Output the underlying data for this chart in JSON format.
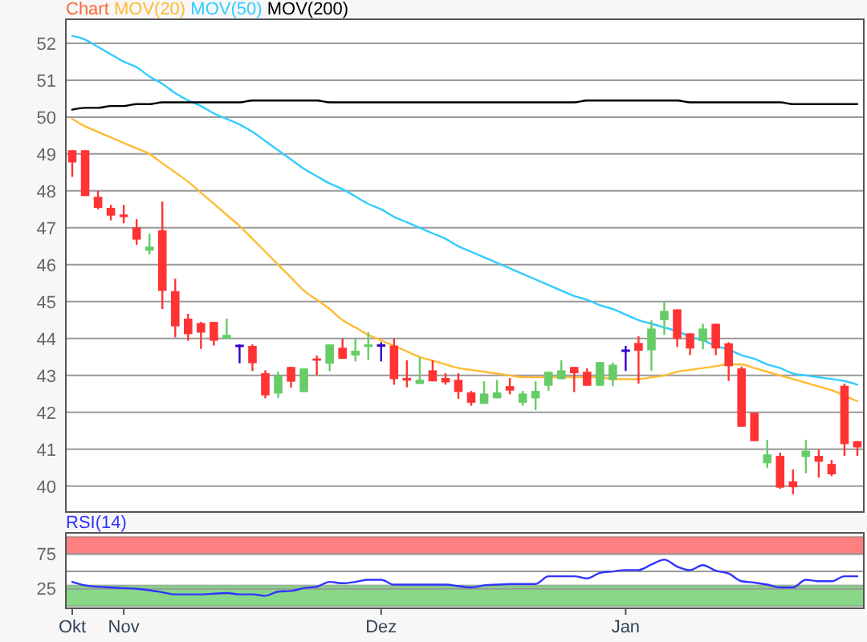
{
  "chart_data": [
    {
      "type": "candlestick",
      "title": "Chart",
      "legend": "top",
      "grid": "y",
      "tick_labels": "y",
      "categories": [
        null,
        null,
        null,
        null,
        null,
        null,
        null,
        null,
        null,
        null,
        null,
        null,
        null,
        null,
        null,
        null,
        null,
        null,
        null,
        null,
        null,
        null,
        null,
        null,
        null,
        null,
        null,
        null,
        null,
        null,
        null,
        null,
        null,
        null,
        null,
        null,
        null,
        null,
        null,
        null,
        null,
        null,
        null,
        null,
        null,
        null,
        null,
        null,
        null,
        null,
        null,
        null,
        null,
        null,
        null,
        null,
        null,
        null,
        null,
        null,
        null,
        null
      ],
      "ohlc": [
        [
          49.1,
          49.1,
          48.38,
          48.77
        ],
        [
          49.1,
          49.1,
          47.86,
          47.86
        ],
        [
          47.84,
          48.0,
          47.5,
          47.54
        ],
        [
          47.54,
          47.62,
          47.2,
          47.33
        ],
        [
          47.36,
          47.62,
          47.12,
          47.29
        ],
        [
          47.01,
          47.23,
          46.54,
          46.68
        ],
        [
          46.38,
          46.84,
          46.28,
          46.49
        ],
        [
          46.93,
          47.71,
          44.8,
          45.29
        ],
        [
          45.28,
          45.62,
          44.03,
          44.33
        ],
        [
          44.54,
          44.67,
          43.94,
          44.12
        ],
        [
          44.42,
          44.45,
          43.72,
          44.16
        ],
        [
          44.45,
          44.45,
          43.81,
          43.94
        ],
        [
          43.99,
          44.54,
          43.99,
          44.1
        ],
        [
          43.8,
          43.84,
          43.33,
          43.8
        ],
        [
          43.8,
          43.84,
          43.12,
          43.33
        ],
        [
          43.06,
          43.14,
          42.38,
          42.46
        ],
        [
          42.51,
          43.1,
          42.39,
          43.0
        ],
        [
          43.23,
          43.23,
          42.67,
          42.83
        ],
        [
          42.55,
          43.19,
          42.55,
          43.19
        ],
        [
          43.46,
          43.54,
          43.01,
          43.4
        ],
        [
          43.32,
          43.84,
          43.12,
          43.84
        ],
        [
          43.75,
          44.0,
          43.45,
          43.45
        ],
        [
          43.54,
          44.0,
          43.38,
          43.67
        ],
        [
          43.77,
          44.17,
          43.42,
          43.84
        ],
        [
          43.81,
          43.9,
          43.38,
          43.81
        ],
        [
          43.81,
          44.0,
          42.75,
          42.9
        ],
        [
          42.93,
          43.41,
          42.68,
          42.86
        ],
        [
          42.77,
          43.49,
          42.77,
          42.88
        ],
        [
          43.14,
          43.41,
          42.84,
          42.84
        ],
        [
          42.93,
          43.06,
          42.75,
          42.81
        ],
        [
          42.88,
          43.06,
          42.37,
          42.55
        ],
        [
          42.54,
          42.58,
          42.18,
          42.26
        ],
        [
          42.23,
          42.84,
          42.23,
          42.51
        ],
        [
          42.38,
          42.88,
          42.38,
          42.54
        ],
        [
          42.71,
          42.93,
          42.49,
          42.59
        ],
        [
          42.26,
          42.58,
          42.18,
          42.51
        ],
        [
          42.38,
          42.84,
          42.06,
          42.58
        ],
        [
          42.72,
          43.1,
          42.59,
          43.1
        ],
        [
          42.9,
          43.41,
          42.9,
          43.14
        ],
        [
          43.23,
          43.23,
          42.55,
          43.06
        ],
        [
          43.1,
          43.19,
          42.72,
          42.72
        ],
        [
          42.72,
          43.36,
          42.72,
          43.36
        ],
        [
          42.88,
          43.35,
          42.71,
          43.29
        ],
        [
          43.67,
          43.8,
          43.12,
          43.67
        ],
        [
          43.88,
          44.06,
          42.78,
          43.67
        ],
        [
          43.68,
          44.49,
          43.12,
          44.27
        ],
        [
          44.5,
          44.99,
          44.1,
          44.75
        ],
        [
          44.79,
          44.79,
          43.77,
          43.99
        ],
        [
          44.14,
          44.14,
          43.55,
          43.73
        ],
        [
          43.93,
          44.4,
          43.71,
          44.27
        ],
        [
          44.4,
          44.4,
          43.55,
          43.73
        ],
        [
          43.87,
          43.9,
          42.85,
          43.25
        ],
        [
          43.19,
          43.24,
          41.61,
          41.61
        ],
        [
          41.99,
          41.99,
          41.22,
          41.22
        ],
        [
          40.62,
          41.25,
          40.49,
          40.86
        ],
        [
          40.82,
          40.91,
          39.93,
          39.96
        ],
        [
          40.13,
          40.45,
          39.78,
          39.97
        ],
        [
          40.79,
          41.25,
          40.35,
          40.96
        ],
        [
          40.82,
          40.99,
          40.23,
          40.66
        ],
        [
          40.6,
          40.71,
          40.27,
          40.32
        ],
        [
          42.72,
          42.78,
          40.82,
          41.14
        ],
        [
          41.22,
          41.22,
          40.82,
          41.05
        ]
      ],
      "colors": [
        "#ff3333",
        "#ff3333",
        "#ff3333",
        "#ff3333",
        "#ff3333",
        "#ff3333",
        "#66cc66",
        "#ff3333",
        "#ff3333",
        "#ff3333",
        "#ff3333",
        "#ff3333",
        "#66cc66",
        "#3300cc",
        "#ff3333",
        "#ff3333",
        "#66cc66",
        "#ff3333",
        "#66cc66",
        "#ff3333",
        "#66cc66",
        "#ff3333",
        "#66cc66",
        "#66cc66",
        "#3300cc",
        "#ff3333",
        "#ff3333",
        "#66cc66",
        "#ff3333",
        "#ff3333",
        "#ff3333",
        "#ff3333",
        "#66cc66",
        "#66cc66",
        "#ff3333",
        "#66cc66",
        "#66cc66",
        "#66cc66",
        "#66cc66",
        "#ff3333",
        "#ff3333",
        "#66cc66",
        "#66cc66",
        "#3300cc",
        "#ff3333",
        "#66cc66",
        "#66cc66",
        "#ff3333",
        "#ff3333",
        "#66cc66",
        "#ff3333",
        "#ff3333",
        "#ff3333",
        "#ff3333",
        "#66cc66",
        "#ff3333",
        "#ff3333",
        "#66cc66",
        "#ff3333",
        "#ff3333",
        "#ff3333",
        "#ff3333"
      ],
      "series": [
        {
          "name": "MOV(20)",
          "type": "line",
          "color": "#ffbb33",
          "values": [
            49.95,
            49.75,
            49.6,
            49.45,
            49.3,
            49.15,
            49.0,
            48.75,
            48.5,
            48.25,
            47.95,
            47.65,
            47.35,
            47.05,
            46.7,
            46.35,
            46.0,
            45.65,
            45.3,
            45.05,
            44.8,
            44.5,
            44.3,
            44.1,
            43.95,
            43.8,
            43.65,
            43.5,
            43.4,
            43.3,
            43.2,
            43.15,
            43.1,
            43.05,
            43.0,
            42.95,
            42.95,
            42.95,
            42.95,
            42.95,
            42.95,
            42.95,
            42.9,
            42.9,
            42.9,
            42.95,
            43.0,
            43.1,
            43.15,
            43.2,
            43.25,
            43.3,
            43.3,
            43.2,
            43.1,
            43.0,
            42.9,
            42.8,
            42.7,
            42.6,
            42.45,
            42.3
          ]
        },
        {
          "name": "MOV(50)",
          "type": "line",
          "color": "#33ccff",
          "values": [
            52.2,
            52.1,
            51.9,
            51.7,
            51.5,
            51.35,
            51.1,
            50.9,
            50.65,
            50.45,
            50.3,
            50.1,
            49.95,
            49.8,
            49.6,
            49.35,
            49.1,
            48.85,
            48.6,
            48.4,
            48.2,
            48.05,
            47.85,
            47.65,
            47.5,
            47.3,
            47.15,
            47.0,
            46.85,
            46.7,
            46.5,
            46.35,
            46.2,
            46.05,
            45.9,
            45.75,
            45.6,
            45.45,
            45.3,
            45.15,
            45.05,
            44.9,
            44.8,
            44.65,
            44.5,
            44.4,
            44.3,
            44.2,
            44.05,
            43.95,
            43.8,
            43.7,
            43.55,
            43.45,
            43.3,
            43.2,
            43.05,
            43.0,
            42.95,
            42.9,
            42.85,
            42.75
          ]
        },
        {
          "name": "MOV(200)",
          "type": "line",
          "color": "#000000",
          "values": [
            50.2,
            50.25,
            50.25,
            50.3,
            50.3,
            50.35,
            50.35,
            50.4,
            50.4,
            50.4,
            50.4,
            50.4,
            50.4,
            50.4,
            50.45,
            50.45,
            50.45,
            50.45,
            50.45,
            50.45,
            50.4,
            50.4,
            50.4,
            50.4,
            50.4,
            50.4,
            50.4,
            50.4,
            50.4,
            50.4,
            50.4,
            50.4,
            50.4,
            50.4,
            50.4,
            50.4,
            50.4,
            50.4,
            50.4,
            50.4,
            50.45,
            50.45,
            50.45,
            50.45,
            50.45,
            50.45,
            50.45,
            50.45,
            50.4,
            50.4,
            50.4,
            50.4,
            50.4,
            50.4,
            50.4,
            50.4,
            50.35,
            50.35,
            50.35,
            50.35,
            50.35,
            50.35
          ]
        }
      ],
      "ylim": [
        39.3,
        52.65
      ],
      "yticks": [
        40,
        41,
        42,
        43,
        44,
        45,
        46,
        47,
        48,
        49,
        50,
        51,
        52
      ]
    },
    {
      "type": "line",
      "title": "RSI(14)",
      "grid": "y",
      "categories": [
        "Okt",
        null,
        null,
        null,
        "Nov",
        null,
        null,
        null,
        null,
        null,
        null,
        null,
        null,
        null,
        null,
        null,
        null,
        null,
        null,
        null,
        null,
        null,
        null,
        null,
        "Dez",
        null,
        null,
        null,
        null,
        null,
        null,
        null,
        null,
        null,
        null,
        null,
        null,
        null,
        null,
        null,
        null,
        null,
        null,
        "Jan",
        null,
        null,
        null,
        null,
        null,
        null,
        null,
        null,
        null,
        null,
        null,
        null,
        null,
        null,
        null,
        null,
        null,
        null
      ],
      "series": [
        {
          "color": "#3333ff",
          "values": [
            35,
            30,
            28,
            27,
            26,
            25,
            23,
            20,
            17,
            17,
            17,
            18,
            19,
            17,
            17,
            15,
            21,
            22,
            26,
            28,
            35,
            33,
            35,
            38,
            38,
            31,
            31,
            31,
            31,
            31,
            29,
            27,
            30,
            31,
            32,
            32,
            32,
            43,
            43,
            43,
            40,
            48,
            50,
            52,
            52,
            60,
            67,
            57,
            52,
            59,
            51,
            47,
            36,
            34,
            31,
            27,
            27,
            38,
            36,
            36,
            43,
            43
          ]
        }
      ],
      "bands": [
        {
          "axis": "y",
          "from": 75,
          "to": 100,
          "color": "#ff8080"
        },
        {
          "axis": "y",
          "from": 0,
          "to": 30,
          "color": "#88d888"
        }
      ],
      "ref_lines": [
        {
          "axis": "y",
          "value": 50,
          "color": "#999999"
        }
      ],
      "ylim": [
        -3,
        105.5
      ],
      "yticks": [
        25,
        75
      ]
    }
  ]
}
